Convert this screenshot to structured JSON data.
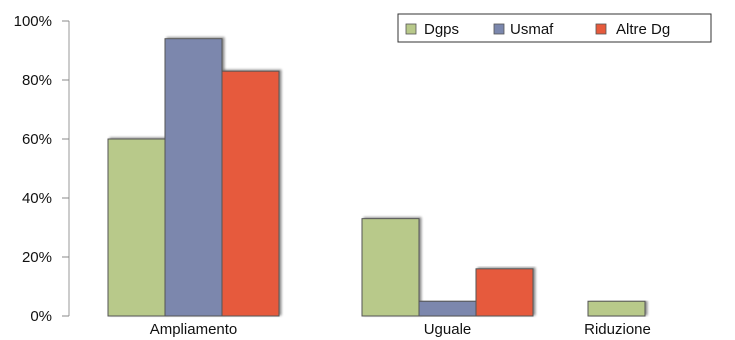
{
  "chart_data": {
    "type": "bar",
    "categories": [
      "Ampliamento",
      "Uguale",
      "Riduzione"
    ],
    "series": [
      {
        "name": "Dgps",
        "values": [
          60,
          33,
          5
        ],
        "color": "#b8c98a"
      },
      {
        "name": "Usmaf",
        "values": [
          94,
          5,
          0
        ],
        "color": "#7b87ad"
      },
      {
        "name": "Altre Dg",
        "values": [
          83,
          16,
          0
        ],
        "color": "#e65a3c"
      }
    ],
    "y_ticks": [
      "0%",
      "20%",
      "40%",
      "60%",
      "80%",
      "100%"
    ],
    "ylim": [
      0,
      100
    ],
    "y_unit": "%",
    "legend_position": "top-right",
    "grid": false,
    "title": "",
    "xlabel": "",
    "ylabel": ""
  }
}
